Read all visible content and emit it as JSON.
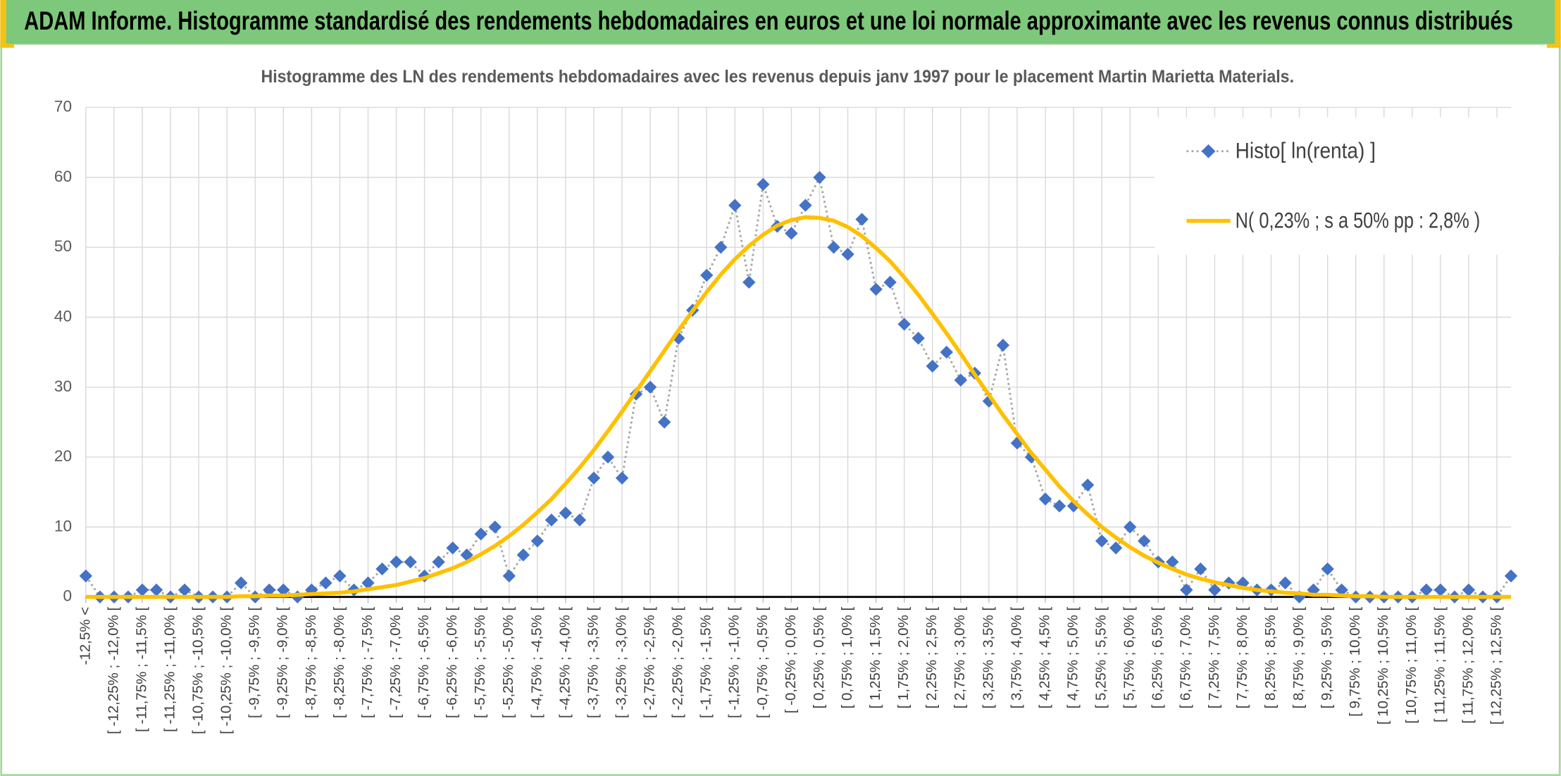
{
  "header": {
    "title": "ADAM Informe. Histogramme standardisé des rendements hebdomadaires en euros et une loi normale approximante avec les revenus connus distribués"
  },
  "chart_data": {
    "type": "line",
    "title": "Histogramme des LN des rendements hebdomadaires avec les revenus depuis janv 1997 pour le placement Martin  Marietta Materials.",
    "categories": [
      "-12,5% <",
      null,
      "[ -12,25% ; -12,0% [",
      null,
      "[ -11,75% ; -11,5% [",
      null,
      "[ -11,25% ; -11,0% [",
      null,
      "[ -10,75% ; -10,5% [",
      null,
      "[ -10,25% ; -10,0% [",
      null,
      "[ -9,75% ; -9,5% [",
      null,
      "[ -9,25% ; -9,0% [",
      null,
      "[ -8,75% ; -8,5% [",
      null,
      "[ -8,25% ; -8,0% [",
      null,
      "[ -7,75% ; -7,5% [",
      null,
      "[ -7,25% ; -7,0% [",
      null,
      "[ -6,75% ; -6,5% [",
      null,
      "[ -6,25% ; -6,0% [",
      null,
      "[ -5,75% ; -5,5% [",
      null,
      "[ -5,25% ; -5,0% [",
      null,
      "[ -4,75% ; -4,5% [",
      null,
      "[ -4,25% ; -4,0% [",
      null,
      "[ -3,75% ; -3,5% [",
      null,
      "[ -3,25% ; -3,0% [",
      null,
      "[ -2,75% ; -2,5% [",
      null,
      "[ -2,25% ; -2,0% [",
      null,
      "[ -1,75% ; -1,5% [",
      null,
      "[ -1,25% ; -1,0% [",
      null,
      "[ -0,75% ; -0,5% [",
      null,
      "[ -0,25% ; 0,0% [",
      null,
      "[ 0,25% ; 0,5% [",
      null,
      "[ 0,75% ; 1,0% [",
      null,
      "[ 1,25% ; 1,5% [",
      null,
      "[ 1,75% ; 2,0% [",
      null,
      "[ 2,25% ; 2,5% [",
      null,
      "[ 2,75% ; 3,0% [",
      null,
      "[ 3,25% ; 3,5% [",
      null,
      "[ 3,75% ; 4,0% [",
      null,
      "[ 4,25% ; 4,5% [",
      null,
      "[ 4,75% ; 5,0% [",
      null,
      "[ 5,25% ; 5,5% [",
      null,
      "[ 5,75% ; 6,0% [",
      null,
      "[ 6,25% ; 6,5% [",
      null,
      "[ 6,75% ; 7,0% [",
      null,
      "[ 7,25% ; 7,5% [",
      null,
      "[ 7,75% ; 8,0% [",
      null,
      "[ 8,25% ; 8,5% [",
      null,
      "[ 8,75% ; 9,0% [",
      null,
      "[ 9,25% ; 9,5% [",
      null,
      "[ 9,75% ; 10,0% [",
      null,
      "[ 10,25% ; 10,5% [",
      null,
      "[ 10,75% ; 11,0% [",
      null,
      "[ 11,25% ; 11,5% [",
      null,
      "[ 11,75% ; 12,0% [",
      null,
      "[ 12,25% ; 12,5% [",
      null
    ],
    "series": [
      {
        "name": "Histo[ ln(renta) ]",
        "color": "#4472c4",
        "line_color": "#a5a5a5",
        "values": [
          3,
          0,
          0,
          0,
          1,
          1,
          0,
          1,
          0,
          0,
          0,
          2,
          0,
          1,
          1,
          0,
          1,
          2,
          3,
          1,
          2,
          4,
          5,
          5,
          3,
          5,
          7,
          6,
          9,
          10,
          3,
          6,
          8,
          11,
          12,
          11,
          17,
          20,
          17,
          29,
          30,
          25,
          37,
          41,
          46,
          50,
          56,
          45,
          59,
          53,
          52,
          56,
          60,
          50,
          49,
          54,
          44,
          45,
          39,
          37,
          33,
          35,
          31,
          32,
          28,
          36,
          22,
          20,
          14,
          13,
          13,
          16,
          8,
          7,
          10,
          8,
          5,
          5,
          1,
          4,
          1,
          2,
          2,
          1,
          1,
          2,
          0,
          1,
          4,
          1,
          0,
          0,
          0,
          0,
          0,
          1,
          1,
          0,
          1,
          0,
          0,
          3
        ]
      },
      {
        "name": "N( 0,23% ; s a 50% pp : 2,8% )",
        "color": "#ffc000",
        "values": [
          0,
          0,
          0,
          0,
          0,
          0,
          0,
          0,
          0,
          0,
          0,
          0.1,
          0.1,
          0.2,
          0.2,
          0.3,
          0.4,
          0.5,
          0.6,
          0.8,
          1.1,
          1.4,
          1.7,
          2.2,
          2.7,
          3.4,
          4.1,
          5.0,
          6.1,
          7.3,
          8.7,
          10.3,
          12.1,
          14.0,
          16.2,
          18.5,
          21.0,
          23.7,
          26.5,
          29.4,
          32.3,
          35.2,
          38.1,
          40.9,
          43.6,
          46.1,
          48.3,
          50.2,
          51.8,
          53.1,
          53.9,
          54.3,
          54.2,
          53.8,
          52.9,
          51.6,
          49.9,
          48.0,
          45.7,
          43.2,
          40.5,
          37.7,
          34.8,
          31.8,
          28.9,
          26.0,
          23.3,
          20.6,
          18.2,
          15.8,
          13.7,
          11.8,
          10.0,
          8.5,
          7.1,
          5.9,
          4.9,
          4.0,
          3.2,
          2.6,
          2.1,
          1.7,
          1.3,
          1.0,
          0.8,
          0.6,
          0.5,
          0.3,
          0.3,
          0.2,
          0.1,
          0.1,
          0,
          0,
          0,
          0,
          0,
          0,
          0,
          0,
          0,
          0
        ]
      }
    ],
    "ylim": [
      0,
      70
    ],
    "yticks": [
      0,
      10,
      20,
      30,
      40,
      50,
      60,
      70
    ],
    "grid": true,
    "legend": "top-right"
  }
}
